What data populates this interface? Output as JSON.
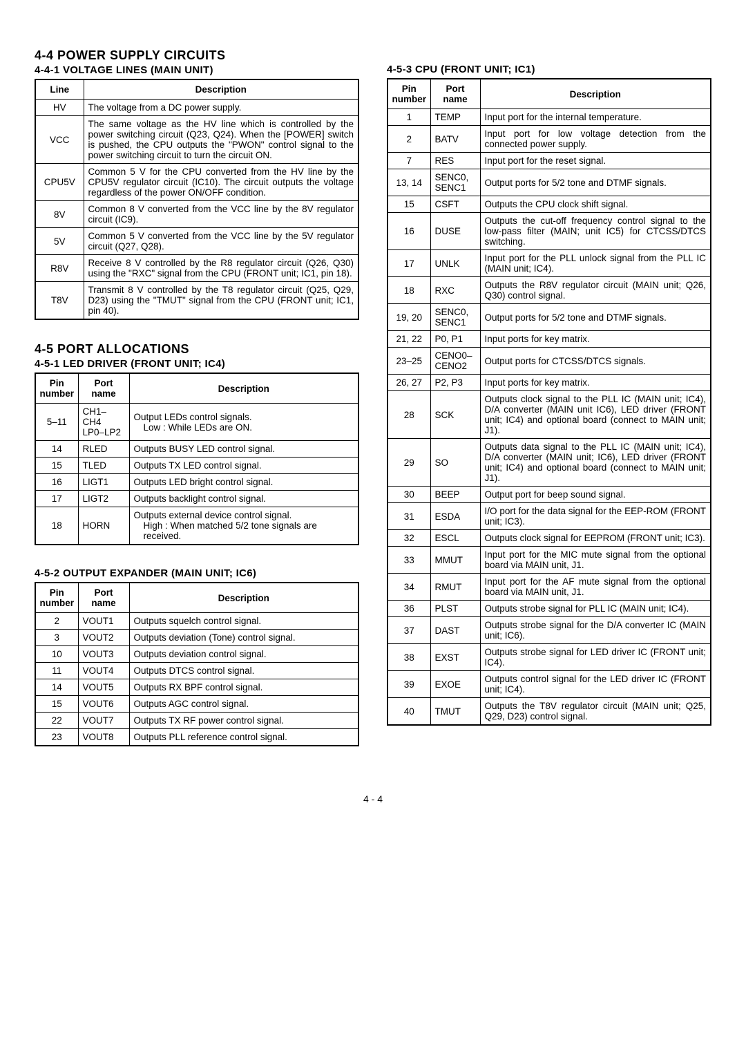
{
  "pageNumber": "4 - 4",
  "left": {
    "sec44": {
      "heading": "4-4 POWER SUPPLY CIRCUITS",
      "sub": "4-4-1 VOLTAGE LINES (MAIN UNIT)",
      "headers": {
        "a": "Line",
        "b": "Description"
      },
      "rows": [
        {
          "a": "HV",
          "b": "The voltage from a DC power supply."
        },
        {
          "a": "VCC",
          "b": "The same voltage as the HV line which is controlled by the power switching circuit (Q23, Q24). When the [POWER] switch is pushed, the CPU outputs the \"PWON\" control signal to the power switching circuit to turn the circuit ON."
        },
        {
          "a": "CPU5V",
          "b": "Common 5 V for the CPU converted from the HV line by the CPU5V regulator circuit (IC10). The circuit outputs the voltage regardless of the power ON/OFF condition."
        },
        {
          "a": "8V",
          "b": "Common 8 V converted from the VCC line by the 8V regulator circuit (IC9)."
        },
        {
          "a": "5V",
          "b": "Common 5 V converted from the VCC line by the 5V regulator circuit (Q27, Q28)."
        },
        {
          "a": "R8V",
          "b": "Receive 8 V controlled by the R8 regulator circuit (Q26, Q30) using the \"RXC\" signal from the CPU (FRONT unit; IC1, pin 18)."
        },
        {
          "a": "T8V",
          "b": "Transmit 8 V controlled by the T8 regulator circuit (Q25, Q29, D23) using the \"TMUT\" signal from the CPU (FRONT unit; IC1, pin 40)."
        }
      ]
    },
    "sec45": {
      "heading": "4-5 PORT ALLOCATIONS",
      "sub1": {
        "title": "4-5-1 LED DRIVER (FRONT UNIT; IC4)",
        "headers": {
          "a": "Pin number",
          "b": "Port name",
          "c": "Description"
        },
        "rows": [
          {
            "a": "5–11",
            "b": "CH1–CH4 LP0–LP2",
            "c": "Output LEDs control signals.",
            "c2": "Low : While LEDs are ON."
          },
          {
            "a": "14",
            "b": "RLED",
            "c": "Outputs BUSY LED control signal."
          },
          {
            "a": "15",
            "b": "TLED",
            "c": "Outputs TX LED control signal."
          },
          {
            "a": "16",
            "b": "LIGT1",
            "c": "Outputs LED bright control signal."
          },
          {
            "a": "17",
            "b": "LIGT2",
            "c": "Outputs backlight control signal."
          },
          {
            "a": "18",
            "b": "HORN",
            "c": "Outputs external device control signal.",
            "c2": "High : When matched 5/2 tone signals are received."
          }
        ]
      },
      "sub2": {
        "title": "4-5-2 OUTPUT EXPANDER (MAIN UNIT; IC6)",
        "headers": {
          "a": "Pin number",
          "b": "Port name",
          "c": "Description"
        },
        "rows": [
          {
            "a": "2",
            "b": "VOUT1",
            "c": "Outputs squelch control signal."
          },
          {
            "a": "3",
            "b": "VOUT2",
            "c": "Outputs deviation (Tone) control signal."
          },
          {
            "a": "10",
            "b": "VOUT3",
            "c": "Outputs deviation control signal."
          },
          {
            "a": "11",
            "b": "VOUT4",
            "c": "Outputs DTCS control signal."
          },
          {
            "a": "14",
            "b": "VOUT5",
            "c": "Outputs RX BPF control signal."
          },
          {
            "a": "15",
            "b": "VOUT6",
            "c": "Outputs AGC control signal."
          },
          {
            "a": "22",
            "b": "VOUT7",
            "c": "Outputs TX RF power control signal."
          },
          {
            "a": "23",
            "b": "VOUT8",
            "c": "Outputs PLL reference control signal."
          }
        ]
      }
    }
  },
  "right": {
    "sec453": {
      "title": "4-5-3 CPU (FRONT UNIT; IC1)",
      "headers": {
        "a": "Pin number",
        "b": "Port name",
        "c": "Description"
      },
      "rows": [
        {
          "a": "1",
          "b": "TEMP",
          "c": "Input port for the internal temperature."
        },
        {
          "a": "2",
          "b": "BATV",
          "c": "Input port for low voltage detection from the connected power supply."
        },
        {
          "a": "7",
          "b": "RES",
          "c": "Input port for the reset signal."
        },
        {
          "a": "13, 14",
          "b": "SENC0, SENC1",
          "c": "Output ports for 5/2 tone and DTMF signals."
        },
        {
          "a": "15",
          "b": "CSFT",
          "c": "Outputs the CPU clock shift signal."
        },
        {
          "a": "16",
          "b": "DUSE",
          "c": "Outputs the cut-off frequency control signal to the low-pass filter (MAIN; unit IC5) for CTCSS/DTCS switching."
        },
        {
          "a": "17",
          "b": "UNLK",
          "c": "Input port for the PLL unlock signal from the PLL IC (MAIN unit; IC4)."
        },
        {
          "a": "18",
          "b": "RXC",
          "c": "Outputs the R8V regulator circuit (MAIN unit; Q26, Q30) control signal."
        },
        {
          "a": "19, 20",
          "b": "SENC0, SENC1",
          "c": "Output ports for 5/2 tone and DTMF signals."
        },
        {
          "a": "21, 22",
          "b": "P0, P1",
          "c": "Input ports for key matrix."
        },
        {
          "a": "23–25",
          "b": "CENO0– CENO2",
          "c": "Output ports for CTCSS/DTCS signals."
        },
        {
          "a": "26, 27",
          "b": "P2, P3",
          "c": "Input ports for key matrix."
        },
        {
          "a": "28",
          "b": "SCK",
          "c": "Outputs clock signal to the PLL IC (MAIN unit; IC4), D/A converter (MAIN unit IC6), LED driver (FRONT unit; IC4) and optional board (connect to MAIN unit; J1)."
        },
        {
          "a": "29",
          "b": "SO",
          "c": "Outputs data signal to the PLL IC (MAIN unit; IC4), D/A converter (MAIN unit; IC6), LED driver (FRONT unit; IC4) and optional board (connect to MAIN unit; J1)."
        },
        {
          "a": "30",
          "b": "BEEP",
          "c": "Output port for beep sound signal."
        },
        {
          "a": "31",
          "b": "ESDA",
          "c": "I/O port for the data signal for the EEP-ROM (FRONT unit; IC3)."
        },
        {
          "a": "32",
          "b": "ESCL",
          "c": "Outputs clock signal for EEPROM (FRONT unit; IC3)."
        },
        {
          "a": "33",
          "b": "MMUT",
          "c": "Input port for the MIC mute signal from the optional board via MAIN unit, J1."
        },
        {
          "a": "34",
          "b": "RMUT",
          "c": "Input port for the AF mute signal from the optional board via MAIN unit, J1."
        },
        {
          "a": "36",
          "b": "PLST",
          "c": "Outputs strobe signal for PLL IC (MAIN unit; IC4)."
        },
        {
          "a": "37",
          "b": "DAST",
          "c": "Outputs strobe signal for the D/A converter IC (MAIN unit; IC6)."
        },
        {
          "a": "38",
          "b": "EXST",
          "c": "Outputs strobe signal for LED driver IC (FRONT unit; IC4)."
        },
        {
          "a": "39",
          "b": "EXOE",
          "c": "Outputs control signal for the LED driver IC (FRONT unit; IC4)."
        },
        {
          "a": "40",
          "b": "TMUT",
          "c": "Outputs the T8V regulator circuit (MAIN unit; Q25, Q29, D23) control signal."
        }
      ]
    }
  }
}
